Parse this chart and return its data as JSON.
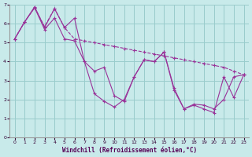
{
  "xlabel": "Windchill (Refroidissement éolien,°C)",
  "ylabel": "",
  "xlim": [
    -0.5,
    23.5
  ],
  "ylim": [
    0,
    7
  ],
  "xticks": [
    0,
    1,
    2,
    3,
    4,
    5,
    6,
    7,
    8,
    9,
    10,
    11,
    12,
    13,
    14,
    15,
    16,
    17,
    18,
    19,
    20,
    21,
    22,
    23
  ],
  "yticks": [
    0,
    1,
    2,
    3,
    4,
    5,
    6,
    7
  ],
  "line_color": "#993399",
  "bg_color": "#c8eaea",
  "grid_color": "#99cccc",
  "line1_x": [
    0,
    1,
    2,
    3,
    4,
    5,
    6,
    7,
    8,
    9,
    10,
    11,
    12,
    13,
    14,
    15,
    16,
    17,
    18,
    19,
    20,
    21,
    22,
    23
  ],
  "line1_y": [
    5.2,
    6.1,
    6.9,
    5.8,
    6.8,
    5.8,
    6.3,
    4.0,
    3.5,
    3.7,
    2.2,
    1.9,
    3.2,
    4.1,
    4.0,
    4.5,
    2.6,
    1.5,
    1.75,
    1.7,
    1.5,
    2.0,
    3.2,
    3.3
  ],
  "line2_x": [
    0,
    1,
    2,
    3,
    4,
    5,
    6,
    7,
    8,
    9,
    10,
    11,
    12,
    13,
    14,
    15,
    16,
    17,
    18,
    19,
    20,
    21,
    22,
    23
  ],
  "line2_y": [
    5.2,
    6.1,
    6.85,
    5.85,
    6.8,
    5.8,
    5.2,
    5.1,
    5.0,
    4.9,
    4.8,
    4.7,
    4.6,
    4.5,
    4.4,
    4.3,
    4.2,
    4.1,
    4.0,
    3.9,
    3.8,
    3.7,
    3.5,
    3.3
  ],
  "line3_x": [
    0,
    1,
    2,
    3,
    4,
    5,
    6,
    7,
    8,
    9,
    10,
    11,
    12,
    13,
    14,
    15,
    16,
    17,
    18,
    19,
    20,
    21,
    22,
    23
  ],
  "line3_y": [
    5.2,
    6.1,
    6.85,
    5.7,
    6.3,
    5.2,
    5.1,
    4.0,
    2.3,
    1.9,
    1.6,
    2.0,
    3.2,
    4.1,
    4.0,
    4.5,
    2.5,
    1.5,
    1.7,
    1.5,
    1.3,
    3.2,
    2.1,
    3.3
  ]
}
